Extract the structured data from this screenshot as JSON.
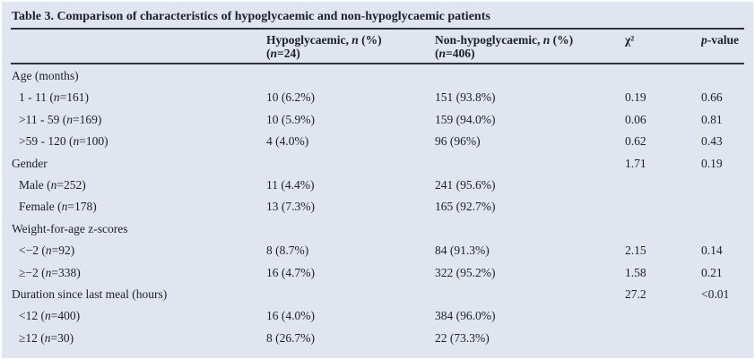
{
  "page": {
    "colors": {
      "background": "#e1e5f0",
      "text": "#1e1e2d",
      "rule": "#32323e"
    }
  },
  "table": {
    "title": "Table 3. Comparison of characteristics of hypoglycaemic and non-hypoglycaemic patients",
    "columns": [
      {
        "id": "characteristic",
        "line1": "",
        "line2": ""
      },
      {
        "id": "hypoglycaemic",
        "line1": "Hypoglycaemic, n (%)",
        "line2": "(n=24)"
      },
      {
        "id": "non_hypoglycaemic",
        "line1": "Non-hypoglycaemic, n (%)",
        "line2": "(n=406)"
      },
      {
        "id": "chi_square",
        "line1": "χ²",
        "line2": ""
      },
      {
        "id": "p_value",
        "line1": "p-value",
        "line2": ""
      }
    ],
    "rows": [
      {
        "label": "Age (months)",
        "indent": false,
        "hypoglycaemic": "",
        "non_hypoglycaemic": "",
        "chi_square": "",
        "p_value": ""
      },
      {
        "label": "1 - 11 (n=161)",
        "indent": true,
        "hypoglycaemic": "10 (6.2%)",
        "non_hypoglycaemic": "151 (93.8%)",
        "chi_square": "0.19",
        "p_value": "0.66"
      },
      {
        "label": ">11 - 59 (n=169)",
        "indent": true,
        "hypoglycaemic": "10 (5.9%)",
        "non_hypoglycaemic": "159 (94.0%)",
        "chi_square": "0.06",
        "p_value": "0.81"
      },
      {
        "label": ">59 - 120 (n=100)",
        "indent": true,
        "hypoglycaemic": "4 (4.0%)",
        "non_hypoglycaemic": "96 (96%)",
        "chi_square": "0.62",
        "p_value": "0.43"
      },
      {
        "label": "Gender",
        "indent": false,
        "hypoglycaemic": "",
        "non_hypoglycaemic": "",
        "chi_square": "1.71",
        "p_value": "0.19"
      },
      {
        "label": "Male (n=252)",
        "indent": true,
        "hypoglycaemic": "11 (4.4%)",
        "non_hypoglycaemic": "241 (95.6%)",
        "chi_square": "",
        "p_value": ""
      },
      {
        "label": "Female (n=178)",
        "indent": true,
        "hypoglycaemic": "13 (7.3%)",
        "non_hypoglycaemic": "165 (92.7%)",
        "chi_square": "",
        "p_value": ""
      },
      {
        "label": "Weight-for-age z-scores",
        "indent": false,
        "hypoglycaemic": "",
        "non_hypoglycaemic": "",
        "chi_square": "",
        "p_value": ""
      },
      {
        "label": "<−2 (n=92)",
        "indent": true,
        "hypoglycaemic": "8 (8.7%)",
        "non_hypoglycaemic": "84 (91.3%)",
        "chi_square": "2.15",
        "p_value": "0.14"
      },
      {
        "label": "≥−2 (n=338)",
        "indent": true,
        "hypoglycaemic": "16 (4.7%)",
        "non_hypoglycaemic": "322 (95.2%)",
        "chi_square": "1.58",
        "p_value": "0.21"
      },
      {
        "label": "Duration since last meal (hours)",
        "indent": false,
        "hypoglycaemic": "",
        "non_hypoglycaemic": "",
        "chi_square": "27.2",
        "p_value": "<0.01"
      },
      {
        "label": "<12 (n=400)",
        "indent": true,
        "hypoglycaemic": "16 (4.0%)",
        "non_hypoglycaemic": "384 (96.0%)",
        "chi_square": "",
        "p_value": ""
      },
      {
        "label": "≥12 (n=30)",
        "indent": true,
        "hypoglycaemic": "8 (26.7%)",
        "non_hypoglycaemic": "22 (73.3%)",
        "chi_square": "",
        "p_value": ""
      }
    ]
  }
}
